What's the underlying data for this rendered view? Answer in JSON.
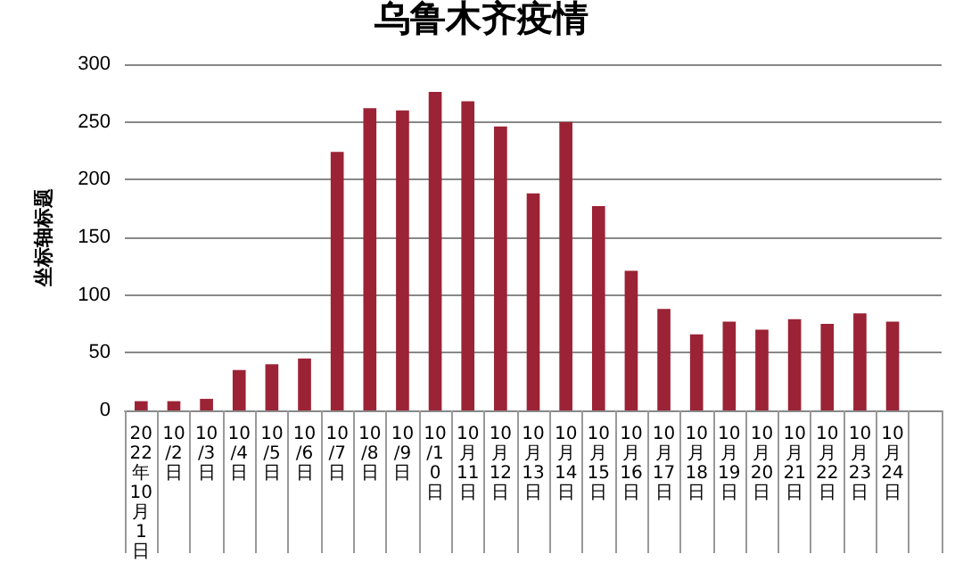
{
  "chart_data": {
    "type": "bar",
    "title": "乌鲁木齐疫情",
    "ylabel": "坐标轴标题",
    "categories": [
      "2022年10月1日",
      "10/2日",
      "10/3日",
      "10/4日",
      "10/5日",
      "10/6日",
      "10/7日",
      "10/8日",
      "10/9日",
      "10/10日",
      "10月11日",
      "10月12日",
      "10月13日",
      "10月14日",
      "10月15日",
      "10月16日",
      "10月17日",
      "10月18日",
      "10月19日",
      "10月20日",
      "10月21日",
      "10月22日",
      "10月23日",
      "10月24日",
      null
    ],
    "values": [
      8,
      8,
      10,
      35,
      40,
      45,
      224,
      262,
      260,
      276,
      268,
      246,
      188,
      250,
      177,
      121,
      88,
      66,
      77,
      70,
      79,
      75,
      84,
      77,
      null
    ],
    "color": "#9b2335",
    "ylim": [
      0,
      300
    ],
    "yticks": [
      0,
      50,
      100,
      150,
      200,
      250,
      300
    ],
    "grid": "y"
  }
}
